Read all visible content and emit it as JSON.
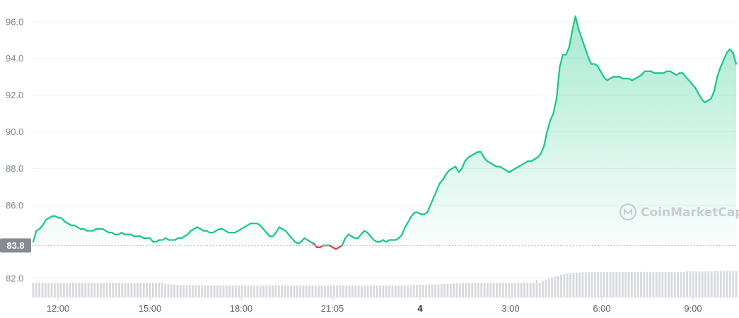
{
  "chart_data": {
    "type": "area",
    "y_ticks": [
      "96.0",
      "94.0",
      "92.0",
      "90.0",
      "88.0",
      "86.0",
      "82.0"
    ],
    "x_ticks": [
      {
        "label": "12:00",
        "bold": false
      },
      {
        "label": "15:00",
        "bold": false
      },
      {
        "label": "18:00",
        "bold": false
      },
      {
        "label": "21:05",
        "bold": false
      },
      {
        "label": "4",
        "bold": true
      },
      {
        "label": "3:00",
        "bold": false
      },
      {
        "label": "6:00",
        "bold": false
      },
      {
        "label": "9:00",
        "bold": false
      }
    ],
    "ylim": [
      81,
      97
    ],
    "grid": true,
    "baseline": {
      "label": "83.8",
      "value": 83.8
    },
    "series": [
      {
        "x_start": "11:00",
        "step_minutes": 5,
        "values": [
          84.0,
          84.6,
          84.7,
          84.9,
          85.2,
          85.3,
          85.4,
          85.4,
          85.3,
          85.3,
          85.1,
          85.0,
          84.9,
          84.9,
          84.8,
          84.7,
          84.7,
          84.6,
          84.6,
          84.6,
          84.7,
          84.7,
          84.7,
          84.6,
          84.5,
          84.5,
          84.4,
          84.4,
          84.5,
          84.4,
          84.4,
          84.4,
          84.3,
          84.3,
          84.3,
          84.2,
          84.2,
          84.2,
          84.0,
          84.0,
          84.1,
          84.1,
          84.2,
          84.1,
          84.1,
          84.1,
          84.2,
          84.2,
          84.3,
          84.4,
          84.6,
          84.7,
          84.8,
          84.7,
          84.6,
          84.6,
          84.5,
          84.5,
          84.6,
          84.7,
          84.7,
          84.6,
          84.5,
          84.5,
          84.5,
          84.6,
          84.7,
          84.8,
          84.9,
          85.0,
          85.0,
          85.0,
          84.9,
          84.7,
          84.5,
          84.3,
          84.3,
          84.5,
          84.8,
          84.7,
          84.6,
          84.4,
          84.2,
          84.0,
          83.9,
          84.0,
          84.2,
          84.1,
          84.0,
          83.9,
          83.7,
          83.7,
          83.8,
          83.8,
          83.8,
          83.7,
          83.6,
          83.7,
          83.8,
          84.2,
          84.4,
          84.3,
          84.2,
          84.2,
          84.4,
          84.6,
          84.5,
          84.3,
          84.1,
          84.0,
          84.0,
          84.1,
          84.0,
          84.1,
          84.1,
          84.1,
          84.2,
          84.4,
          84.8,
          85.1,
          85.4,
          85.6,
          85.6,
          85.5,
          85.5,
          85.6,
          86.0,
          86.4,
          86.8,
          87.2,
          87.4,
          87.7,
          87.9,
          88.0,
          88.1,
          87.8,
          88.0,
          88.4,
          88.6,
          88.7,
          88.8,
          88.9,
          88.9,
          88.6,
          88.4,
          88.3,
          88.2,
          88.1,
          88.1,
          88.0,
          87.9,
          87.8,
          87.9,
          88.0,
          88.1,
          88.2,
          88.3,
          88.4,
          88.4,
          88.5,
          88.6,
          88.8,
          89.2,
          90.0,
          90.6,
          91.0,
          91.8,
          93.5,
          94.2,
          94.2,
          94.6,
          95.5,
          96.3,
          95.6,
          95.1,
          94.6,
          94.1,
          93.7,
          93.7,
          93.6,
          93.3,
          93.0,
          92.8,
          92.9,
          93.0,
          93.0,
          93.0,
          92.9,
          92.9,
          92.9,
          92.8,
          92.9,
          93.0,
          93.1,
          93.3,
          93.3,
          93.3,
          93.2,
          93.2,
          93.2,
          93.2,
          93.3,
          93.3,
          93.2,
          93.1,
          93.2,
          93.2,
          93.0,
          92.8,
          92.6,
          92.4,
          92.1,
          91.8,
          91.6,
          91.7,
          91.8,
          92.2,
          93.0,
          93.5,
          93.9,
          94.3,
          94.5,
          94.3,
          93.7
        ]
      }
    ],
    "volume_note": "grey volume bars along bottom, relative heights",
    "volume": [
      0.5,
      0.5,
      0.5,
      0.5,
      0.5,
      0.5,
      0.5,
      0.5,
      0.5,
      0.5,
      0.5,
      0.5,
      0.5,
      0.5,
      0.5,
      0.5,
      0.5,
      0.5,
      0.5,
      0.5,
      0.5,
      0.5,
      0.5,
      0.5,
      0.5,
      0.5,
      0.5,
      0.5,
      0.5,
      0.5,
      0.5,
      0.5,
      0.5,
      0.5,
      0.5,
      0.5,
      0.5,
      0.5,
      0.5,
      0.5,
      0.5,
      0.5,
      0.5,
      0.45,
      0.45,
      0.44,
      0.43,
      0.42,
      0.42,
      0.42,
      0.42,
      0.42,
      0.42,
      0.41,
      0.41,
      0.41,
      0.41,
      0.41,
      0.41,
      0.41,
      0.41,
      0.4,
      0.4,
      0.4,
      0.4,
      0.4,
      0.4,
      0.4,
      0.4,
      0.4,
      0.4,
      0.4,
      0.4,
      0.4,
      0.4,
      0.4,
      0.4,
      0.4,
      0.4,
      0.4,
      0.4,
      0.4,
      0.4,
      0.4,
      0.4,
      0.4,
      0.4,
      0.4,
      0.4,
      0.4,
      0.4,
      0.4,
      0.4,
      0.4,
      0.4,
      0.4,
      0.4,
      0.4,
      0.4,
      0.4,
      0.4,
      0.4,
      0.4,
      0.4,
      0.4,
      0.4,
      0.4,
      0.4,
      0.4,
      0.4,
      0.4,
      0.4,
      0.4,
      0.4,
      0.4,
      0.4,
      0.4,
      0.4,
      0.4,
      0.4,
      0.4,
      0.4,
      0.4,
      0.42,
      0.42,
      0.42,
      0.42,
      0.42,
      0.42,
      0.44,
      0.44,
      0.44,
      0.44,
      0.46,
      0.46,
      0.46,
      0.46,
      0.48,
      0.48,
      0.48,
      0.5,
      0.5,
      0.5,
      0.5,
      0.5,
      0.5,
      0.5,
      0.5,
      0.5,
      0.5,
      0.5,
      0.5,
      0.5,
      0.5,
      0.5,
      0.5,
      0.5,
      0.5,
      0.5,
      0.5,
      0.5,
      0.5,
      0.5,
      0.5,
      0.6,
      0.5,
      0.55,
      0.6,
      0.65,
      0.68,
      0.72,
      0.75,
      0.78,
      0.8,
      0.82,
      0.84,
      0.85,
      0.86,
      0.86,
      0.87,
      0.87,
      0.88,
      0.88,
      0.88,
      0.88,
      0.88,
      0.88,
      0.88,
      0.88,
      0.88,
      0.88,
      0.88,
      0.88,
      0.88,
      0.88,
      0.88,
      0.88,
      0.88,
      0.88,
      0.88,
      0.88,
      0.88,
      0.88,
      0.88,
      0.88,
      0.88,
      0.88,
      0.88,
      0.88,
      0.88,
      0.88,
      0.88,
      0.88,
      0.9,
      0.9,
      0.9,
      0.9,
      0.9,
      0.9,
      0.9,
      0.9,
      0.9,
      0.92,
      0.92,
      0.92,
      0.92,
      0.92,
      0.92,
      0.92,
      0.92
    ],
    "colors": {
      "up": "#16c784",
      "down": "#ea3943",
      "volume": "#d7d9de",
      "grid": "#eff2f5"
    }
  },
  "watermark": {
    "text": "CoinMarketCap"
  }
}
